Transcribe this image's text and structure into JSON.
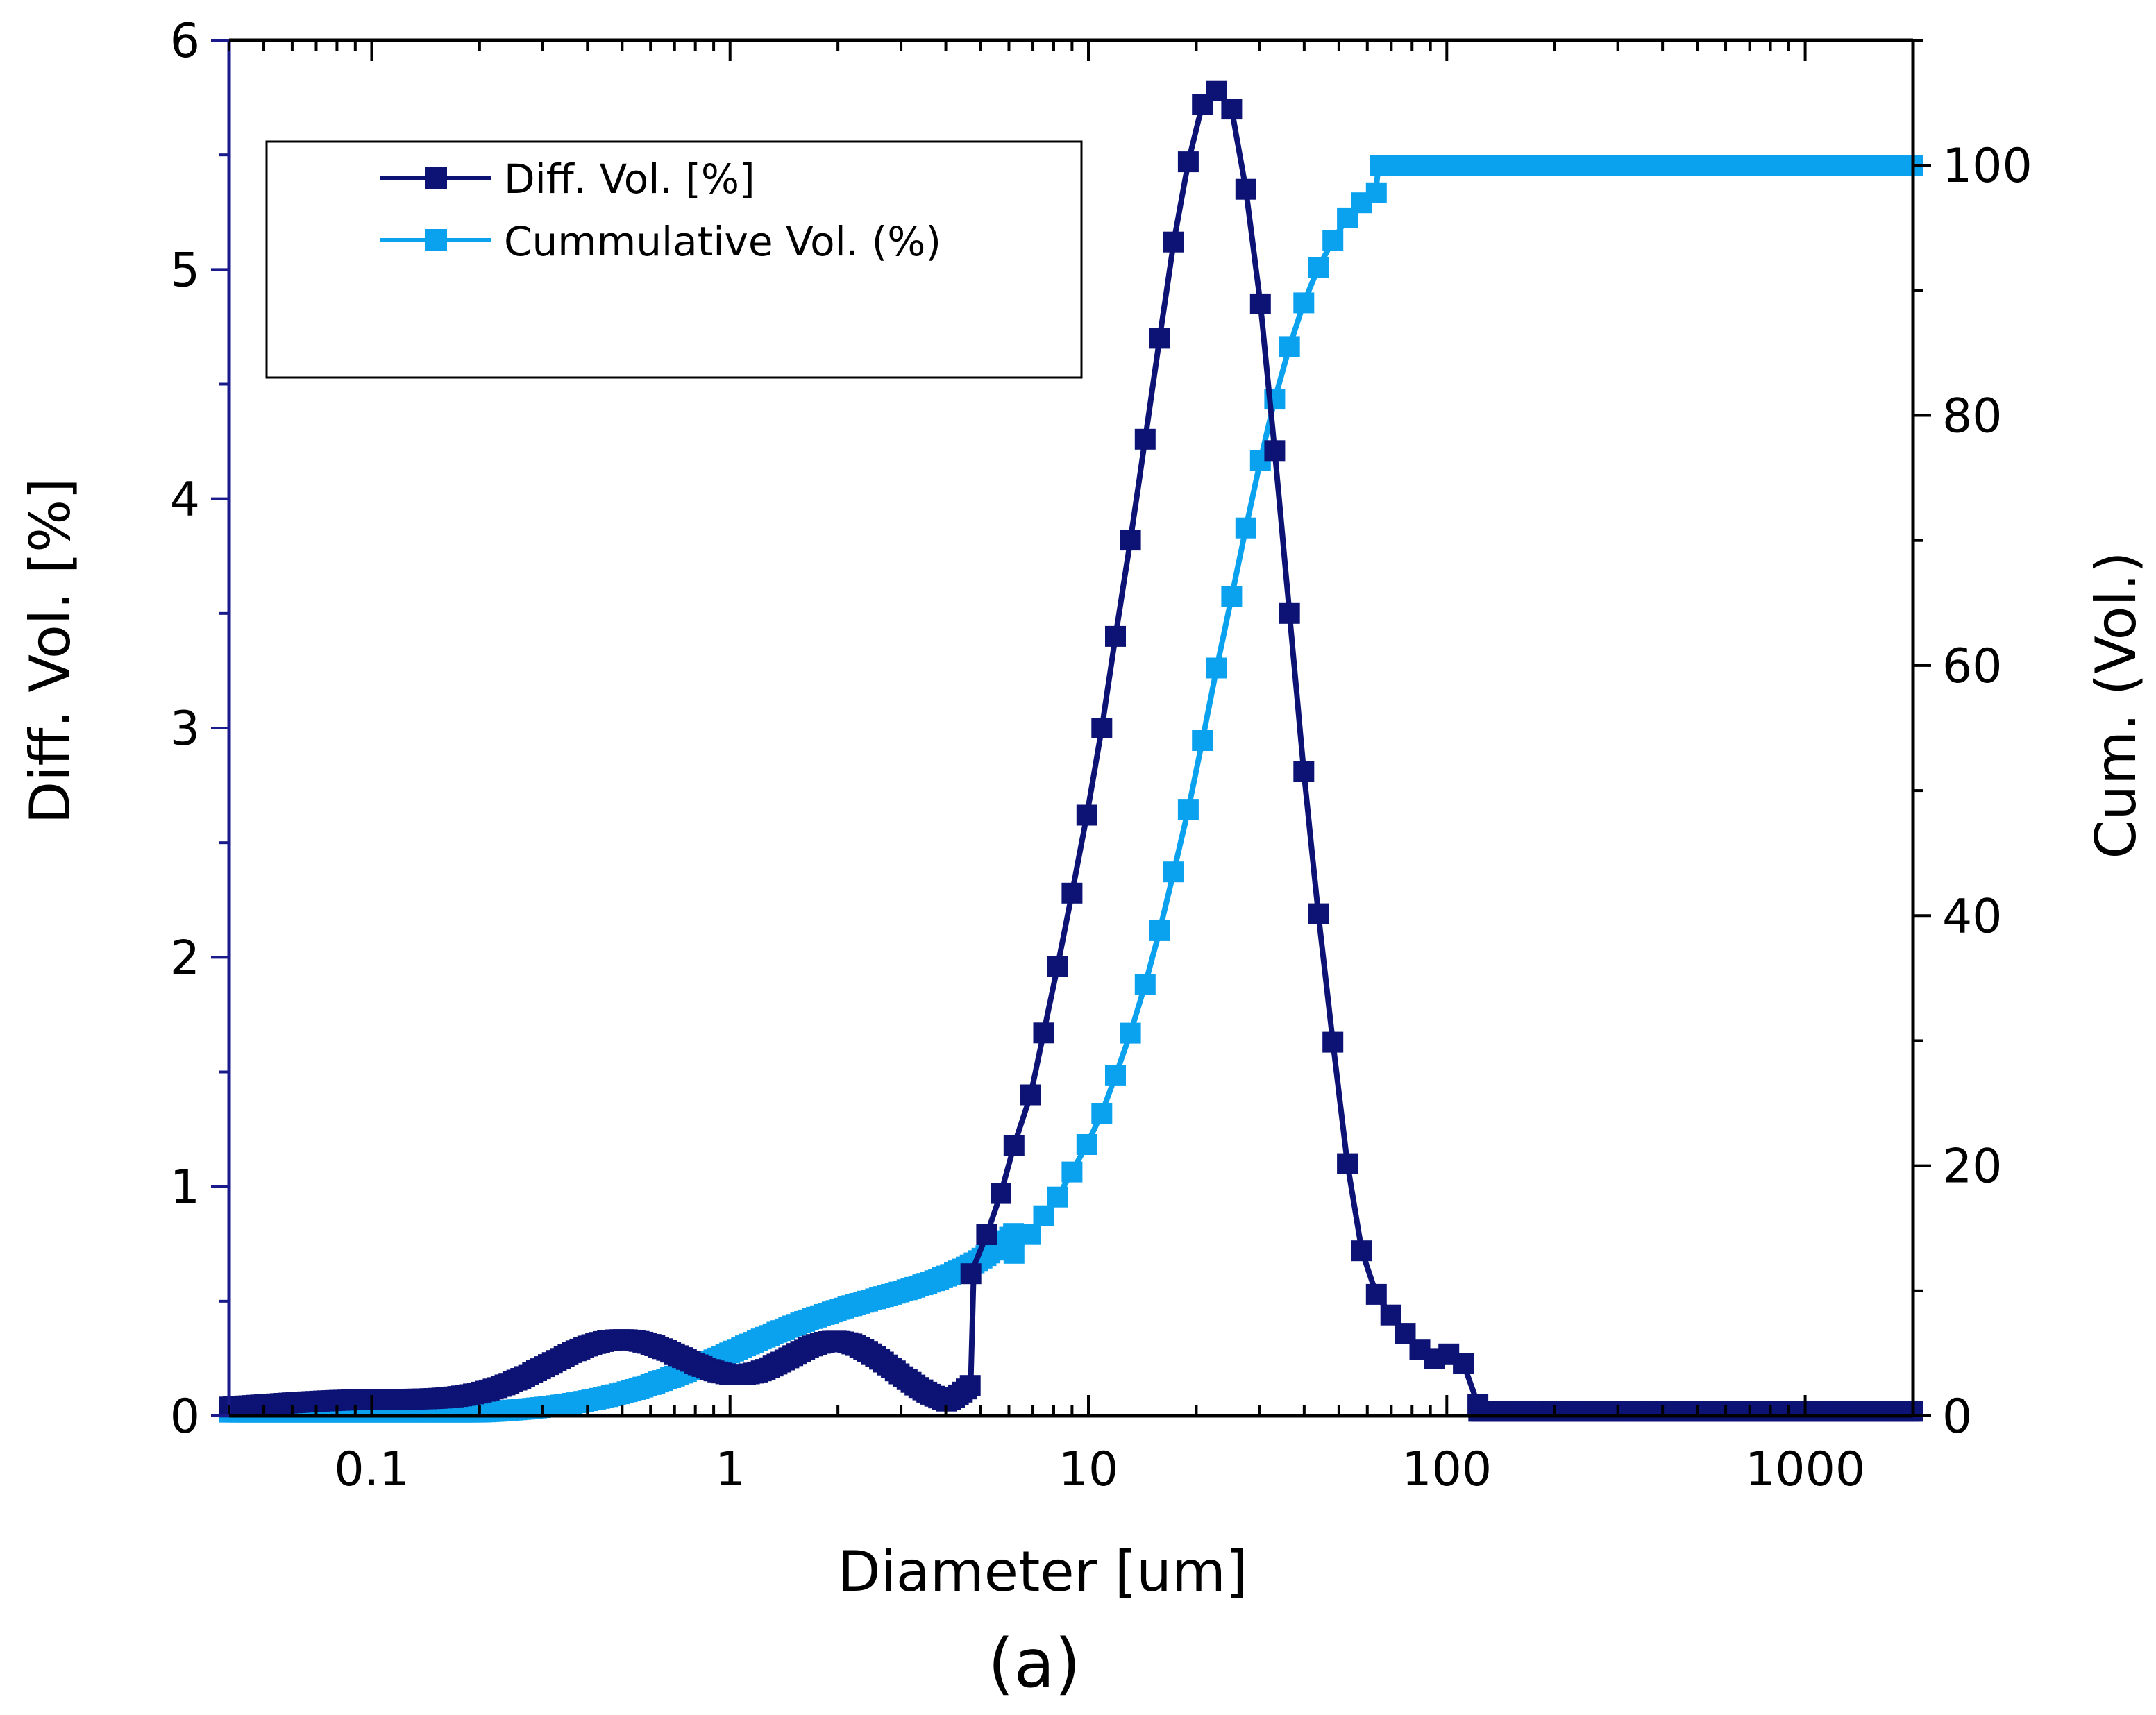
{
  "chart_data": {
    "type": "line",
    "panel_label": "(a)",
    "xlabel": "Diameter [um]",
    "ylabel_left": "Diff. Vol. [%]",
    "ylabel_right": "Cum. (Vol.)",
    "x_scale": "log",
    "xlim": [
      0.04,
      2000
    ],
    "ylim_left": [
      0,
      6
    ],
    "ylim_right": [
      0,
      110
    ],
    "x_ticks": [
      0.1,
      1,
      10,
      100,
      1000
    ],
    "x_tick_labels": [
      "0.1",
      "1",
      "10",
      "100",
      "1000"
    ],
    "y_left_ticks": [
      0,
      1,
      2,
      3,
      4,
      5,
      6
    ],
    "y_left_tick_labels": [
      "0",
      "1",
      "2",
      "3",
      "4",
      "5",
      "6"
    ],
    "y_right_ticks": [
      0,
      20,
      40,
      60,
      80,
      100
    ],
    "y_right_tick_labels": [
      "0",
      "20",
      "40",
      "60",
      "80",
      "100"
    ],
    "grid": false,
    "legend_position": "top-left",
    "colors": {
      "diff": "#0d1275",
      "cum": "#0aa2ef",
      "axis_left": "#1a1a8c",
      "axis": "#000000"
    },
    "series": [
      {
        "name": "Diff. Vol. [%]",
        "axis": "left",
        "color": "#0d1275",
        "marker": "square",
        "x": [
          4.7,
          5.2,
          5.7,
          6.2,
          6.9,
          7.5,
          8.2,
          9.0,
          9.9,
          10.9,
          11.9,
          13.1,
          14.4,
          15.8,
          17.3,
          19.0,
          20.8,
          22.8,
          25.1,
          27.5,
          30.2,
          33.1,
          36.4,
          39.9,
          43.8,
          48.1,
          52.8,
          57.9,
          63.6,
          69.8,
          76.6,
          84.1,
          92.3,
          101.3,
          111.2,
          122.1
        ],
        "y": [
          0.62,
          0.79,
          0.97,
          1.18,
          1.4,
          1.67,
          1.96,
          2.28,
          2.62,
          3.0,
          3.4,
          3.82,
          4.26,
          4.7,
          5.12,
          5.47,
          5.72,
          5.78,
          5.7,
          5.35,
          4.85,
          4.21,
          3.5,
          2.81,
          2.19,
          1.63,
          1.1,
          0.72,
          0.53,
          0.44,
          0.36,
          0.29,
          0.25,
          0.27,
          0.23,
          0.05
        ]
      },
      {
        "name": "Cummulative Vol. (%)",
        "axis": "right",
        "color": "#0aa2ef",
        "marker": "square",
        "x": [
          6.2,
          6.9,
          7.5,
          8.2,
          9.0,
          9.9,
          10.9,
          11.9,
          13.1,
          14.4,
          15.8,
          17.3,
          19.0,
          20.8,
          22.8,
          25.1,
          27.5,
          30.2,
          33.1,
          36.4,
          39.9,
          43.8,
          48.1,
          52.8,
          57.9,
          63.6
        ],
        "y": [
          13.0,
          14.5,
          16.0,
          17.5,
          19.5,
          21.7,
          24.2,
          27.2,
          30.6,
          34.5,
          38.8,
          43.5,
          48.5,
          54.0,
          59.8,
          65.5,
          71.0,
          76.4,
          81.3,
          85.5,
          89.0,
          91.8,
          94.0,
          95.8,
          97.0,
          97.8
        ]
      }
    ]
  }
}
